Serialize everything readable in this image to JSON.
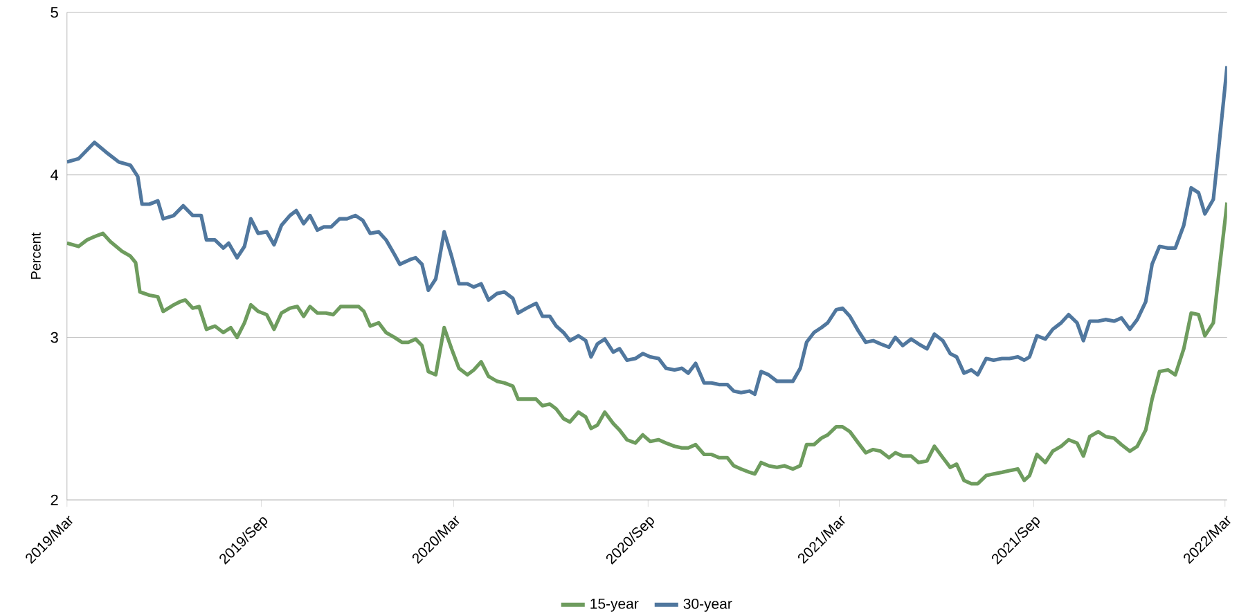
{
  "chart_data": {
    "type": "line",
    "ylabel": "Percent",
    "xlim": [
      "2019-03-01",
      "2022-03-03"
    ],
    "ylim": [
      2,
      5
    ],
    "yticks": [
      2,
      3,
      4,
      5
    ],
    "xticks": [
      {
        "value": "2019-03",
        "label": "2019/Mar"
      },
      {
        "value": "2019-09",
        "label": "2019/Sep"
      },
      {
        "value": "2020-03",
        "label": "2020/Mar"
      },
      {
        "value": "2020-09",
        "label": "2020/Sep"
      },
      {
        "value": "2021-03",
        "label": "2021/Mar"
      },
      {
        "value": "2021-09",
        "label": "2021/Sep"
      },
      {
        "value": "2022-03",
        "label": "2022/Mar"
      }
    ],
    "grid": "y",
    "legend": "bottom",
    "marker": "none",
    "line_style": "solid",
    "series": [
      {
        "name": "15-year",
        "color": "#6e9c5e",
        "x": [
          "2019-03-01",
          "2019-03-12",
          "2019-03-20",
          "2019-03-27",
          "2019-04-04",
          "2019-04-11",
          "2019-04-22",
          "2019-04-30",
          "2019-05-05",
          "2019-05-09",
          "2019-05-18",
          "2019-05-26",
          "2019-05-31",
          "2019-06-10",
          "2019-06-16",
          "2019-06-21",
          "2019-06-28",
          "2019-07-04",
          "2019-07-11",
          "2019-07-19",
          "2019-07-27",
          "2019-08-03",
          "2019-08-09",
          "2019-08-16",
          "2019-08-22",
          "2019-08-29",
          "2019-09-06",
          "2019-09-13",
          "2019-09-20",
          "2019-09-28",
          "2019-10-05",
          "2019-10-11",
          "2019-10-17",
          "2019-10-24",
          "2019-11-01",
          "2019-11-08",
          "2019-11-15",
          "2019-11-23",
          "2019-12-02",
          "2019-12-07",
          "2019-12-13",
          "2019-12-21",
          "2019-12-28",
          "2020-01-05",
          "2020-01-12",
          "2020-01-18",
          "2020-01-25",
          "2020-01-31",
          "2020-02-06",
          "2020-02-13",
          "2020-02-21",
          "2020-02-28",
          "2020-03-06",
          "2020-03-14",
          "2020-03-20",
          "2020-03-27",
          "2020-04-03",
          "2020-04-11",
          "2020-04-18",
          "2020-04-26",
          "2020-05-01",
          "2020-05-11",
          "2020-05-18",
          "2020-05-24",
          "2020-05-31",
          "2020-06-06",
          "2020-06-13",
          "2020-06-19",
          "2020-06-27",
          "2020-07-04",
          "2020-07-09",
          "2020-07-15",
          "2020-07-22",
          "2020-07-30",
          "2020-08-05",
          "2020-08-12",
          "2020-08-20",
          "2020-08-27",
          "2020-09-03",
          "2020-09-11",
          "2020-09-18",
          "2020-09-26",
          "2020-10-03",
          "2020-10-09",
          "2020-10-16",
          "2020-10-24",
          "2020-10-31",
          "2020-11-07",
          "2020-11-15",
          "2020-11-21",
          "2020-11-28",
          "2020-12-06",
          "2020-12-11",
          "2020-12-17",
          "2020-12-24",
          "2021-01-01",
          "2021-01-08",
          "2021-01-16",
          "2021-01-23",
          "2021-01-29",
          "2021-02-05",
          "2021-02-12",
          "2021-02-18",
          "2021-02-26",
          "2021-03-04",
          "2021-03-11",
          "2021-03-19",
          "2021-03-26",
          "2021-04-02",
          "2021-04-09",
          "2021-04-17",
          "2021-04-23",
          "2021-04-30",
          "2021-05-08",
          "2021-05-15",
          "2021-05-23",
          "2021-05-30",
          "2021-06-07",
          "2021-06-14",
          "2021-06-20",
          "2021-06-27",
          "2021-07-04",
          "2021-07-10",
          "2021-07-18",
          "2021-07-25",
          "2021-08-02",
          "2021-08-09",
          "2021-08-17",
          "2021-08-23",
          "2021-08-28",
          "2021-09-04",
          "2021-09-12",
          "2021-09-19",
          "2021-09-27",
          "2021-10-04",
          "2021-10-12",
          "2021-10-18",
          "2021-10-24",
          "2021-11-01",
          "2021-11-08",
          "2021-11-16",
          "2021-11-23",
          "2021-12-01",
          "2021-12-08",
          "2021-12-16",
          "2021-12-22",
          "2021-12-29",
          "2022-01-06",
          "2022-01-13",
          "2022-01-21",
          "2022-01-28",
          "2022-02-04",
          "2022-02-10",
          "2022-02-18",
          "2022-02-23",
          "2022-03-03"
        ],
        "values": [
          3.58,
          3.56,
          3.6,
          3.62,
          3.64,
          3.59,
          3.53,
          3.5,
          3.46,
          3.28,
          3.26,
          3.25,
          3.16,
          3.2,
          3.22,
          3.23,
          3.18,
          3.19,
          3.05,
          3.07,
          3.03,
          3.06,
          3.0,
          3.09,
          3.2,
          3.16,
          3.14,
          3.05,
          3.15,
          3.18,
          3.19,
          3.13,
          3.19,
          3.15,
          3.15,
          3.14,
          3.19,
          3.19,
          3.19,
          3.16,
          3.07,
          3.09,
          3.03,
          3.0,
          2.97,
          2.97,
          2.99,
          2.95,
          2.79,
          2.77,
          3.06,
          2.93,
          2.81,
          2.77,
          2.8,
          2.85,
          2.76,
          2.73,
          2.72,
          2.7,
          2.62,
          2.62,
          2.62,
          2.58,
          2.59,
          2.56,
          2.5,
          2.48,
          2.54,
          2.51,
          2.44,
          2.46,
          2.54,
          2.47,
          2.43,
          2.37,
          2.35,
          2.4,
          2.36,
          2.37,
          2.35,
          2.33,
          2.32,
          2.32,
          2.34,
          2.28,
          2.28,
          2.26,
          2.26,
          2.21,
          2.19,
          2.17,
          2.16,
          2.23,
          2.21,
          2.2,
          2.21,
          2.19,
          2.21,
          2.34,
          2.34,
          2.38,
          2.4,
          2.45,
          2.45,
          2.42,
          2.35,
          2.29,
          2.31,
          2.3,
          2.26,
          2.29,
          2.27,
          2.27,
          2.23,
          2.24,
          2.33,
          2.26,
          2.2,
          2.22,
          2.12,
          2.1,
          2.1,
          2.15,
          2.16,
          2.17,
          2.18,
          2.19,
          2.12,
          2.15,
          2.28,
          2.23,
          2.3,
          2.33,
          2.37,
          2.35,
          2.27,
          2.39,
          2.42,
          2.39,
          2.38,
          2.34,
          2.3,
          2.33,
          2.43,
          2.62,
          2.79,
          2.8,
          2.77,
          2.93,
          3.15,
          3.14,
          3.01,
          3.09,
          3.38,
          3.83
        ]
      },
      {
        "name": "30-year",
        "color": "#50779e",
        "x": [
          "2019-03-01",
          "2019-03-12",
          "2019-03-27",
          "2019-04-07",
          "2019-04-19",
          "2019-04-30",
          "2019-05-07",
          "2019-05-11",
          "2019-05-18",
          "2019-05-26",
          "2019-05-31",
          "2019-06-10",
          "2019-06-19",
          "2019-06-28",
          "2019-07-06",
          "2019-07-11",
          "2019-07-19",
          "2019-07-27",
          "2019-08-01",
          "2019-08-09",
          "2019-08-16",
          "2019-08-22",
          "2019-08-29",
          "2019-09-06",
          "2019-09-13",
          "2019-09-20",
          "2019-09-28",
          "2019-10-04",
          "2019-10-11",
          "2019-10-17",
          "2019-10-24",
          "2019-10-30",
          "2019-11-06",
          "2019-11-14",
          "2019-11-21",
          "2019-11-29",
          "2019-12-06",
          "2019-12-13",
          "2019-12-21",
          "2019-12-28",
          "2020-01-05",
          "2020-01-10",
          "2020-01-20",
          "2020-01-25",
          "2020-01-31",
          "2020-02-06",
          "2020-02-13",
          "2020-02-21",
          "2020-02-28",
          "2020-03-06",
          "2020-03-14",
          "2020-03-20",
          "2020-03-27",
          "2020-04-03",
          "2020-04-11",
          "2020-04-18",
          "2020-04-26",
          "2020-05-01",
          "2020-05-09",
          "2020-05-18",
          "2020-05-24",
          "2020-05-31",
          "2020-06-06",
          "2020-06-13",
          "2020-06-19",
          "2020-06-27",
          "2020-07-04",
          "2020-07-09",
          "2020-07-15",
          "2020-07-22",
          "2020-07-30",
          "2020-08-05",
          "2020-08-12",
          "2020-08-20",
          "2020-08-27",
          "2020-09-03",
          "2020-09-11",
          "2020-09-18",
          "2020-09-26",
          "2020-10-03",
          "2020-10-09",
          "2020-10-16",
          "2020-10-24",
          "2020-10-31",
          "2020-11-07",
          "2020-11-15",
          "2020-11-21",
          "2020-11-28",
          "2020-12-06",
          "2020-12-11",
          "2020-12-17",
          "2020-12-24",
          "2021-01-01",
          "2021-01-08",
          "2021-01-16",
          "2021-01-23",
          "2021-01-29",
          "2021-02-05",
          "2021-02-12",
          "2021-02-18",
          "2021-02-26",
          "2021-03-04",
          "2021-03-11",
          "2021-03-19",
          "2021-03-26",
          "2021-04-02",
          "2021-04-09",
          "2021-04-17",
          "2021-04-23",
          "2021-04-30",
          "2021-05-08",
          "2021-05-15",
          "2021-05-23",
          "2021-05-30",
          "2021-06-07",
          "2021-06-14",
          "2021-06-20",
          "2021-06-27",
          "2021-07-04",
          "2021-07-10",
          "2021-07-18",
          "2021-07-25",
          "2021-08-02",
          "2021-08-09",
          "2021-08-17",
          "2021-08-23",
          "2021-08-28",
          "2021-09-04",
          "2021-09-12",
          "2021-09-19",
          "2021-09-27",
          "2021-10-04",
          "2021-10-12",
          "2021-10-18",
          "2021-10-24",
          "2021-11-01",
          "2021-11-08",
          "2021-11-16",
          "2021-11-23",
          "2021-12-01",
          "2021-12-08",
          "2021-12-16",
          "2021-12-22",
          "2021-12-29",
          "2022-01-06",
          "2022-01-13",
          "2022-01-21",
          "2022-01-28",
          "2022-02-04",
          "2022-02-10",
          "2022-02-18",
          "2022-02-23",
          "2022-03-03"
        ],
        "values": [
          4.08,
          4.1,
          4.2,
          4.14,
          4.08,
          4.06,
          3.99,
          3.82,
          3.82,
          3.84,
          3.73,
          3.75,
          3.81,
          3.75,
          3.75,
          3.6,
          3.6,
          3.55,
          3.58,
          3.49,
          3.56,
          3.73,
          3.64,
          3.65,
          3.57,
          3.69,
          3.75,
          3.78,
          3.7,
          3.75,
          3.66,
          3.68,
          3.68,
          3.73,
          3.73,
          3.75,
          3.72,
          3.64,
          3.65,
          3.6,
          3.51,
          3.45,
          3.48,
          3.49,
          3.45,
          3.29,
          3.36,
          3.65,
          3.5,
          3.33,
          3.33,
          3.31,
          3.33,
          3.23,
          3.27,
          3.28,
          3.24,
          3.15,
          3.18,
          3.21,
          3.13,
          3.13,
          3.07,
          3.03,
          2.98,
          3.01,
          2.98,
          2.88,
          2.96,
          2.99,
          2.91,
          2.93,
          2.86,
          2.87,
          2.9,
          2.88,
          2.87,
          2.81,
          2.8,
          2.81,
          2.78,
          2.84,
          2.72,
          2.72,
          2.71,
          2.71,
          2.67,
          2.66,
          2.67,
          2.65,
          2.79,
          2.77,
          2.73,
          2.73,
          2.73,
          2.81,
          2.97,
          3.03,
          3.06,
          3.09,
          3.17,
          3.18,
          3.13,
          3.04,
          2.97,
          2.98,
          2.96,
          2.94,
          3.0,
          2.95,
          2.99,
          2.96,
          2.93,
          3.02,
          2.98,
          2.9,
          2.88,
          2.78,
          2.8,
          2.77,
          2.87,
          2.86,
          2.87,
          2.87,
          2.88,
          2.86,
          2.88,
          3.01,
          2.99,
          3.05,
          3.09,
          3.14,
          3.09,
          2.98,
          3.1,
          3.1,
          3.11,
          3.1,
          3.12,
          3.05,
          3.11,
          3.22,
          3.45,
          3.56,
          3.55,
          3.55,
          3.69,
          3.92,
          3.89,
          3.76,
          3.85,
          4.16,
          4.67
        ]
      }
    ]
  }
}
